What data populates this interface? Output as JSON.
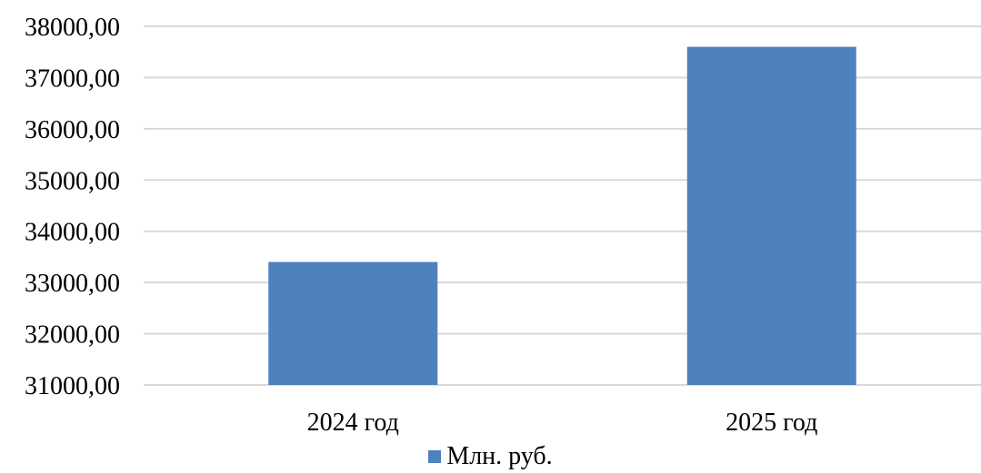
{
  "chart_data": {
    "type": "bar",
    "categories": [
      "2024 год",
      "2025 год"
    ],
    "series": [
      {
        "name": "Млн. руб.",
        "values": [
          33400,
          37600
        ],
        "color": "#4F81BD"
      }
    ],
    "title": "",
    "xlabel": "",
    "ylabel": "",
    "ylim": [
      31000,
      38000
    ],
    "y_ticks": [
      31000,
      32000,
      33000,
      34000,
      35000,
      36000,
      37000,
      38000
    ],
    "y_tick_labels": [
      "31000,00",
      "32000,00",
      "33000,00",
      "34000,00",
      "35000,00",
      "36000,00",
      "37000,00",
      "38000,00"
    ],
    "grid": true,
    "grid_color": "#D9D9D9",
    "legend_position": "bottom"
  }
}
